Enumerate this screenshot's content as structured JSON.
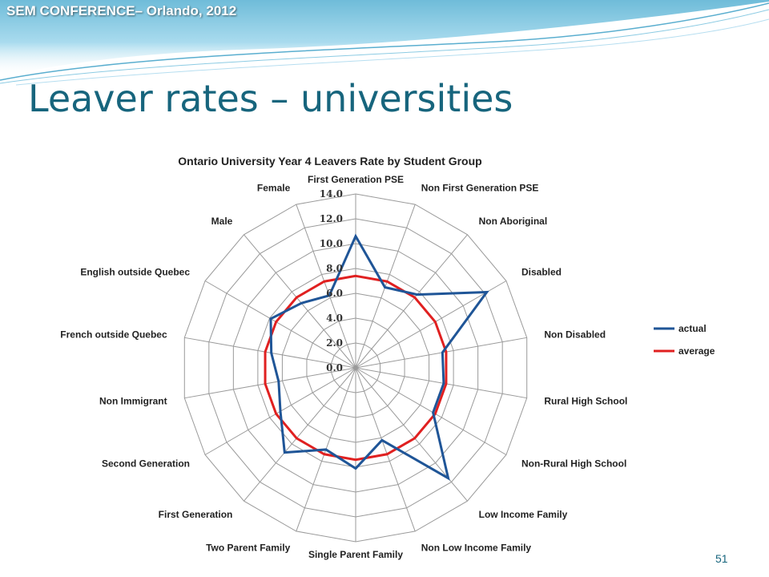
{
  "header": {
    "conference": "SEM CONFERENCE– Orlando, 2012"
  },
  "slide": {
    "title": "Leaver rates – universities",
    "page_number": "51"
  },
  "colors": {
    "title": "#17657d",
    "banner_top": "#7cc3dd",
    "actual": "#1f5597",
    "average": "#e02020",
    "grid": "#9a9a9a"
  },
  "chart_data": {
    "type": "radar",
    "title": "Ontario University Year 4 Leavers Rate by Student Group",
    "categories": [
      "First Generation PSE",
      "Non First Generation PSE",
      "Non Aboriginal",
      "Disabled",
      "Non Disabled",
      "Rural High School",
      "Non-Rural High School",
      "Low Income Family",
      "Non Low Income Family",
      "Single Parent Family",
      "Two Parent Family",
      "First Generation",
      "Second Generation",
      "Non Immigrant",
      "French outside Quebec",
      "English outside Quebec",
      "Male",
      "Female"
    ],
    "series": [
      {
        "name": "actual",
        "color": "#1f5597",
        "values": [
          10.6,
          6.9,
          7.7,
          12.2,
          7.1,
          7.2,
          7.2,
          11.6,
          6.2,
          8.1,
          7.0,
          8.9,
          7.0,
          6.3,
          6.9,
          7.9,
          6.8,
          6.2
        ]
      },
      {
        "name": "average",
        "color": "#e02020",
        "values": [
          7.4,
          7.4,
          7.4,
          7.4,
          7.4,
          7.4,
          7.4,
          7.4,
          7.4,
          7.4,
          7.4,
          7.4,
          7.4,
          7.4,
          7.4,
          7.4,
          7.4,
          7.4
        ]
      }
    ],
    "r_ticks": [
      "0.0",
      "2.0",
      "4.0",
      "6.0",
      "8.0",
      "10.0",
      "12.0",
      "14.0"
    ],
    "r_range": [
      0,
      14
    ],
    "legend": [
      "actual",
      "average"
    ],
    "legend_position": "right",
    "grid": true
  }
}
